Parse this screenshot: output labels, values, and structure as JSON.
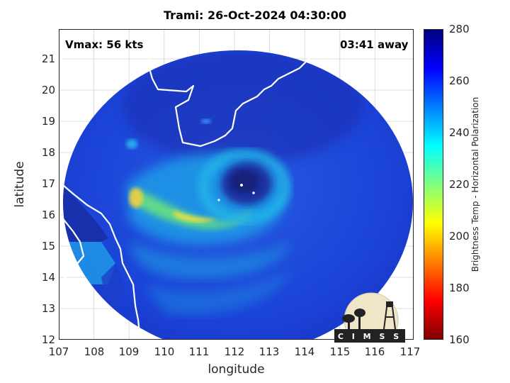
{
  "title": "Trami: 26-Oct-2024 04:30:00",
  "vmax_label": "Vmax: 56 kts",
  "away_label": "03:41 away",
  "x_axis": {
    "label": "longitude",
    "ticks": [
      "107",
      "108",
      "109",
      "110",
      "111",
      "112",
      "113",
      "114",
      "115",
      "116",
      "117"
    ],
    "range": [
      107,
      117.3
    ]
  },
  "y_axis": {
    "label": "latitude",
    "ticks": [
      "12",
      "13",
      "14",
      "15",
      "16",
      "17",
      "18",
      "19",
      "20",
      "21"
    ],
    "range": [
      12,
      22
    ]
  },
  "colorbar": {
    "label": "Brightness Temp - Horizontal Polarization",
    "ticks": [
      "160",
      "180",
      "200",
      "220",
      "240",
      "260",
      "280"
    ],
    "range": [
      160,
      280
    ],
    "colormap": [
      "#7f0000",
      "#ff0000",
      "#ff7f00",
      "#ffff00",
      "#7fff7f",
      "#00ffff",
      "#007fff",
      "#0000ff",
      "#00007f"
    ]
  },
  "storm": {
    "name": "Trami",
    "center_lon": 112.4,
    "center_lat": 16.8
  },
  "logo": {
    "text": "CIMSS"
  },
  "colors": {
    "background_field": "#1a3fd8",
    "cold_core": "#1a2a8a",
    "coastline": "#ffffff",
    "border": "#000000"
  }
}
